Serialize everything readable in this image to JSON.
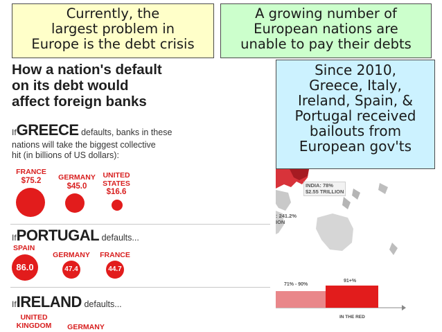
{
  "callouts": {
    "debt_crisis": [
      "Currently, the",
      "largest problem in",
      "Europe is the debt crisis"
    ],
    "unable_to_pay": [
      "A growing number of",
      "European nations are",
      "unable to pay their debts"
    ],
    "bailouts": [
      "Since 2010,",
      "Greece, Italy,",
      "Ireland, Spain, &",
      "Portugal received",
      "bailouts from",
      "European gov'ts"
    ]
  },
  "infographic": {
    "heading": [
      "How a nation's default",
      "on its debt would",
      "affect foreign banks"
    ],
    "greece": {
      "if": "If",
      "country": "GREECE",
      "text_1": "defaults, banks in these",
      "text_2": "nations will take the biggest collective",
      "text_3": "hit (in billions of US dollars):",
      "banks": [
        {
          "name": "FRANCE",
          "value": "$75.2"
        },
        {
          "name": "GERMANY",
          "value": "$45.0"
        },
        {
          "name": "UNITED STATES",
          "value": "$16.6"
        }
      ]
    },
    "portugal": {
      "if": "If",
      "country": "PORTUGAL",
      "suffix": "defaults...",
      "banks": [
        {
          "name": "SPAIN",
          "value": "86.0"
        },
        {
          "name": "GERMANY",
          "value": "47.4"
        },
        {
          "name": "FRANCE",
          "value": "44.7"
        }
      ]
    },
    "ireland": {
      "if": "If",
      "country": "IRELAND",
      "suffix": "defaults...",
      "banks": [
        {
          "name": "UNITED KINGDOM"
        },
        {
          "name": "GERMANY"
        }
      ]
    }
  },
  "map": {
    "india_label_1": "INDIA: 78%",
    "india_label_2": "$2.55 TRILLION",
    "partial_label_1": ": 241.2%",
    "partial_label_2": "ION",
    "bracket_1": "71% - 90%",
    "bracket_2": "91+%",
    "in_the_red": "IN THE RED"
  },
  "colors": {
    "callout_yellow": "#ffffc9",
    "callout_green": "#ccffcc",
    "callout_blue": "#ccf2ff",
    "accent_red": "#e21c1c"
  }
}
